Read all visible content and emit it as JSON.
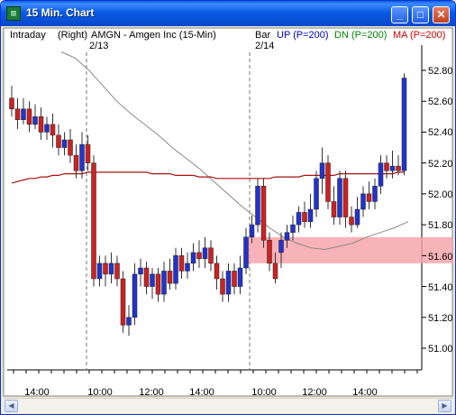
{
  "window": {
    "title": "15 Min. Chart",
    "icon": "chart-app-icon",
    "buttons": {
      "minimize": "_",
      "maximize": "□",
      "close": "✕"
    }
  },
  "header": {
    "interval": "Intraday",
    "axis_side": "(Right)",
    "symbol_desc": "AMGN - Amgen Inc  (15-Min)",
    "session_label_1": "2/13",
    "bar_label": "Bar",
    "session_label_2": "2/14",
    "legend": [
      {
        "text": "UP (P=200)",
        "color": "#0000cc"
      },
      {
        "text": "DN (P=200)",
        "color": "#008800"
      },
      {
        "text": "MA (P=200)",
        "color": "#cc0000"
      }
    ]
  },
  "colors": {
    "up_candle": "#2233cc",
    "down_candle": "#cc2222",
    "ma_line": "#aa1111",
    "thin_line": "#888888",
    "zone_fill": "#f5a0a8"
  },
  "chart_data": {
    "type": "candlestick",
    "y_axis": {
      "ticks": [
        "52.80",
        "52.60",
        "52.40",
        "52.20",
        "52.00",
        "51.80",
        "51.60",
        "51.40",
        "51.20",
        "51.00"
      ],
      "range": [
        50.85,
        53.0
      ]
    },
    "x_axis": {
      "ticks": [
        "14:00",
        "10:00",
        "12:00",
        "14:00",
        "10:00",
        "12:00",
        "14:00"
      ]
    },
    "zone": {
      "low": 51.55,
      "high": 51.72,
      "label": "51.60"
    },
    "candles": [
      [
        52.62,
        52.55,
        52.7,
        52.5
      ],
      [
        52.55,
        52.48,
        52.62,
        52.42
      ],
      [
        52.48,
        52.55,
        52.62,
        52.45
      ],
      [
        52.55,
        52.45,
        52.6,
        52.4
      ],
      [
        52.45,
        52.5,
        52.58,
        52.42
      ],
      [
        52.5,
        52.4,
        52.56,
        52.35
      ],
      [
        52.4,
        52.45,
        52.5,
        52.35
      ],
      [
        52.45,
        52.38,
        52.52,
        52.3
      ],
      [
        52.38,
        52.3,
        52.45,
        52.25
      ],
      [
        52.3,
        52.35,
        52.4,
        52.25
      ],
      [
        52.35,
        52.25,
        52.42,
        52.2
      ],
      [
        52.25,
        52.15,
        52.32,
        52.1
      ],
      [
        52.15,
        52.32,
        52.4,
        52.1
      ],
      [
        52.32,
        52.2,
        52.38,
        52.15
      ],
      [
        52.2,
        51.45,
        52.25,
        51.4
      ],
      [
        51.45,
        51.55,
        51.6,
        51.4
      ],
      [
        51.55,
        51.48,
        51.6,
        51.4
      ],
      [
        51.48,
        51.55,
        51.62,
        51.42
      ],
      [
        51.55,
        51.45,
        51.6,
        51.4
      ],
      [
        51.45,
        51.15,
        51.5,
        51.1
      ],
      [
        51.15,
        51.2,
        51.28,
        51.08
      ],
      [
        51.2,
        51.48,
        51.55,
        51.15
      ],
      [
        51.48,
        51.52,
        51.58,
        51.4
      ],
      [
        51.52,
        51.4,
        51.56,
        51.35
      ],
      [
        51.4,
        51.48,
        51.52,
        51.32
      ],
      [
        51.48,
        51.35,
        51.52,
        51.3
      ],
      [
        51.35,
        51.5,
        51.56,
        51.3
      ],
      [
        51.5,
        51.42,
        51.58,
        51.38
      ],
      [
        51.42,
        51.6,
        51.65,
        51.38
      ],
      [
        51.6,
        51.5,
        51.65,
        51.45
      ],
      [
        51.5,
        51.55,
        51.62,
        51.45
      ],
      [
        51.55,
        51.62,
        51.68,
        51.5
      ],
      [
        51.62,
        51.58,
        51.7,
        51.52
      ],
      [
        51.58,
        51.65,
        51.72,
        51.52
      ],
      [
        51.65,
        51.55,
        51.7,
        51.5
      ],
      [
        51.55,
        51.45,
        51.6,
        51.38
      ],
      [
        51.45,
        51.35,
        51.5,
        51.3
      ],
      [
        51.35,
        51.5,
        51.55,
        51.3
      ],
      [
        51.5,
        51.4,
        51.55,
        51.35
      ],
      [
        51.4,
        51.52,
        51.6,
        51.35
      ],
      [
        51.52,
        51.72,
        51.78,
        51.48
      ],
      [
        51.72,
        51.8,
        51.86,
        51.68
      ],
      [
        51.8,
        52.05,
        52.1,
        51.75
      ],
      [
        52.05,
        51.7,
        52.1,
        51.65
      ],
      [
        51.7,
        51.55,
        51.75,
        51.5
      ],
      [
        51.55,
        51.45,
        51.62,
        51.42
      ],
      [
        51.62,
        51.7,
        51.75,
        51.52
      ],
      [
        51.7,
        51.75,
        51.8,
        51.65
      ],
      [
        51.75,
        51.8,
        51.86,
        51.7
      ],
      [
        51.8,
        51.88,
        51.92,
        51.75
      ],
      [
        51.88,
        51.82,
        51.95,
        51.78
      ],
      [
        51.82,
        51.9,
        52.0,
        51.78
      ],
      [
        51.9,
        52.1,
        52.15,
        51.85
      ],
      [
        52.1,
        52.2,
        52.3,
        52.0
      ],
      [
        52.2,
        51.95,
        52.25,
        51.9
      ],
      [
        51.95,
        51.85,
        52.05,
        51.8
      ],
      [
        51.85,
        52.1,
        52.15,
        51.8
      ],
      [
        52.1,
        51.85,
        52.15,
        51.78
      ],
      [
        51.85,
        51.8,
        51.92,
        51.75
      ],
      [
        51.8,
        51.9,
        51.98,
        51.78
      ],
      [
        51.9,
        52.0,
        52.05,
        51.85
      ],
      [
        52.0,
        51.95,
        52.08,
        51.9
      ],
      [
        51.95,
        52.05,
        52.1,
        51.9
      ],
      [
        52.05,
        52.2,
        52.25,
        52.0
      ],
      [
        52.2,
        52.15,
        52.25,
        52.1
      ],
      [
        52.15,
        52.18,
        52.28,
        52.1
      ],
      [
        52.18,
        52.15,
        52.25,
        52.12
      ],
      [
        52.15,
        52.75,
        52.78,
        52.12
      ]
    ],
    "ma_values": [
      52.07,
      52.08,
      52.09,
      52.1,
      52.1,
      52.11,
      52.11,
      52.12,
      52.12,
      52.13,
      52.13,
      52.13,
      52.13,
      52.14,
      52.14,
      52.14,
      52.14,
      52.14,
      52.14,
      52.14,
      52.14,
      52.14,
      52.14,
      52.14,
      52.13,
      52.13,
      52.13,
      52.13,
      52.12,
      52.12,
      52.12,
      52.12,
      52.11,
      52.11,
      52.11,
      52.1,
      52.1,
      52.1,
      52.1,
      52.1,
      52.1,
      52.1,
      52.1,
      52.1,
      52.1,
      52.11,
      52.11,
      52.11,
      52.11,
      52.11,
      52.12,
      52.12,
      52.12,
      52.12,
      52.12,
      52.12,
      52.13,
      52.13,
      52.13,
      52.13,
      52.13,
      52.13,
      52.13,
      52.13,
      52.13,
      52.13,
      52.14,
      52.14
    ],
    "thin_values": [
      52.92,
      52.88,
      52.8,
      52.7,
      52.6,
      52.52,
      52.45,
      52.38,
      52.3,
      52.23,
      52.16,
      52.08,
      52.0,
      51.92,
      51.85,
      51.78,
      51.72,
      51.68,
      51.65,
      51.64,
      51.66,
      51.68,
      51.72,
      51.75,
      51.78,
      51.82
    ]
  }
}
